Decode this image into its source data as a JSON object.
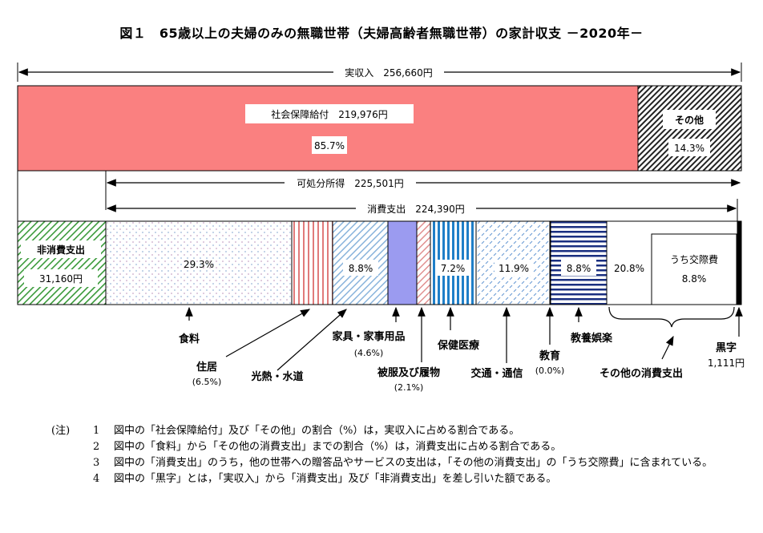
{
  "title": "図１　65歳以上の夫婦のみの無職世帯（夫婦高齢者無職世帯）の家計収支 －2020年－",
  "chart_data": {
    "type": "bar",
    "unit": "円",
    "total_income": {
      "label": "実収入",
      "value": 256660,
      "text": "実収入　256,660円"
    },
    "income_breakdown": [
      {
        "name": "社会保障給付",
        "value": 219976,
        "percent": 85.7,
        "text": "社会保障給付　219,976円",
        "pct_text": "85.7%"
      },
      {
        "name": "その他",
        "percent": 14.3,
        "pct_text": "14.3%"
      }
    ],
    "disposable_income": {
      "label": "可処分所得",
      "value": 225501,
      "text": "可処分所得　225,501円"
    },
    "consumption_expenditure": {
      "label": "消費支出",
      "value": 224390,
      "text": "消費支出　224,390円"
    },
    "non_consumption": {
      "label": "非消費支出",
      "value": 31160,
      "value_text": "31,160円"
    },
    "categories": [
      {
        "name": "食料",
        "percent": 29.3,
        "text": "29.3%"
      },
      {
        "name": "住居",
        "percent": 6.5,
        "text": "(6.5%)"
      },
      {
        "name": "光熱・水道",
        "percent": null,
        "text": ""
      },
      {
        "name": "家具・家事用品",
        "percent": 4.6,
        "text": "(4.6%)"
      },
      {
        "name": "被服及び履物",
        "percent": 2.1,
        "text": "(2.1%)"
      },
      {
        "name": "保健医療",
        "percent": 7.2,
        "text": "7.2%"
      },
      {
        "name": "交通・通信",
        "percent": 11.9,
        "text": "11.9%"
      },
      {
        "name": "教育",
        "percent": 0.0,
        "text": "(0.0%)"
      },
      {
        "name": "教養娯楽",
        "percent": 8.8,
        "text": "8.8%"
      },
      {
        "name": "その他の消費支出",
        "percent": 20.8,
        "text": "20.8%"
      }
    ],
    "utility_percent_text": "8.8%",
    "social_expense": {
      "name": "うち交際費",
      "percent": 8.8,
      "text": "8.8%"
    },
    "surplus": {
      "label": "黒字",
      "value": 1111,
      "value_text": "1,111円"
    }
  },
  "notes": {
    "head": "(注)",
    "items": [
      {
        "num": "1",
        "text": "図中の「社会保障給付」及び「その他」の割合（%）は，実収入に占める割合である。"
      },
      {
        "num": "2",
        "text": "図中の「食料」から「その他の消費支出」までの割合（%）は，消費支出に占める割合である。"
      },
      {
        "num": "3",
        "text": "図中の「消費支出」のうち，他の世帯への贈答品やサービスの支出は，「その他の消費支出」の「うち交際費」に含まれている。"
      },
      {
        "num": "4",
        "text": "図中の「黒字」とは，「実収入」から「消費支出」及び「非消費支出」を差し引いた額である。"
      }
    ]
  },
  "colors": {
    "social": "#fa8080",
    "food_dots": "#9ab6d8",
    "housing": "#e07a7a",
    "utility": "#8ab4dc",
    "furniture": "#9b9bf0",
    "medical": "#1f7fc8",
    "transport": "#6f9fd6",
    "culture": "#1a2f80",
    "non_consumption": "#3a9a3a"
  }
}
